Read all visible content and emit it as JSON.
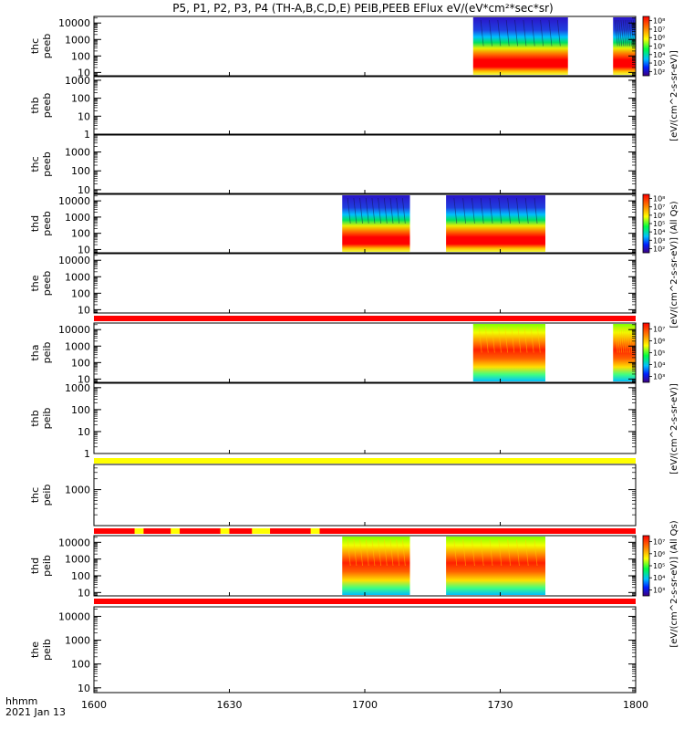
{
  "title": "P5, P1, P2, P3, P4 (TH-A,B,C,D,E) PEIB,PEEB EFlux eV/(eV*cm²*sec*sr)",
  "x_axis": {
    "row_label": "hhmm",
    "date_label": "2021 Jan 13",
    "ticks": [
      "1600",
      "1630",
      "1700",
      "1730",
      "1800"
    ]
  },
  "colorbar_labels": {
    "electron": "[eV/(cm^2-s-sr-eV)]",
    "electron_mid": "[eV/(cm^2-s-sr-eV)] (All Qs)",
    "ion": "[eV/(cm^2-s-sr-eV)]",
    "ion_bottom": "[eV/(cm^2-s-sr-eV)] (All Qs)"
  },
  "colors": {
    "red_bar": "#ff0000",
    "yellow_bar": "#ffff00",
    "spectrogram_low": "#2020c8",
    "spectrogram_high": "#ff0000"
  },
  "chart_data": {
    "type": "heatmap",
    "x_range": [
      "16:00",
      "18:00"
    ],
    "panels": [
      {
        "label1": "thc",
        "label2": "peeb",
        "yticks": [
          "10",
          "100",
          "1000",
          "10000"
        ],
        "ylog": [
          0.8,
          4.4
        ],
        "data_intervals": [
          [
            "17:24",
            "17:45"
          ],
          [
            "17:55",
            "18:00"
          ]
        ],
        "colorbar": {
          "ticks": [
            "10⁸",
            "10⁷",
            "10⁶",
            "10⁵",
            "10⁴",
            "10³",
            "10²"
          ],
          "label_key": "electron"
        }
      },
      {
        "label1": "thb",
        "label2": "peeb",
        "yticks": [
          "1",
          "10",
          "100",
          "1000"
        ],
        "ylog": [
          0,
          3.2
        ],
        "data_intervals": []
      },
      {
        "label1": "thc",
        "label2": "peeb",
        "yticks": [
          "10",
          "100",
          "1000"
        ],
        "ylog": [
          0.8,
          3.9
        ],
        "data_intervals": []
      },
      {
        "label1": "thd",
        "label2": "peeb",
        "yticks": [
          "10",
          "100",
          "1000",
          "10000"
        ],
        "ylog": [
          0.8,
          4.4
        ],
        "data_intervals": [
          [
            "16:55",
            "17:10"
          ],
          [
            "17:18",
            "17:40"
          ]
        ],
        "colorbar": {
          "ticks": [
            "10⁸",
            "10⁷",
            "10⁶",
            "10⁵",
            "10⁴",
            "10³",
            "10²"
          ],
          "label_key": "electron_mid"
        }
      },
      {
        "label1": "the",
        "label2": "peeb",
        "yticks": [
          "10",
          "100",
          "1000",
          "10000"
        ],
        "ylog": [
          0.8,
          4.4
        ],
        "data_intervals": [],
        "below_bar": "red"
      },
      {
        "label1": "tha",
        "label2": "peib",
        "yticks": [
          "10",
          "100",
          "1000",
          "10000"
        ],
        "ylog": [
          0.8,
          4.4
        ],
        "data_intervals": [
          [
            "17:24",
            "17:40"
          ],
          [
            "17:55",
            "18:00"
          ]
        ],
        "colorbar": {
          "ticks": [
            "10⁷",
            "10⁶",
            "10⁵",
            "10⁴",
            "10³"
          ],
          "label_key": "ion"
        }
      },
      {
        "label1": "thb",
        "label2": "peib",
        "yticks": [
          "1",
          "10",
          "100",
          "1000"
        ],
        "ylog": [
          0,
          3.2
        ],
        "data_intervals": [],
        "below_bar": "yellow"
      },
      {
        "label1": "thc",
        "label2": "peib",
        "yticks": [
          "1000"
        ],
        "ylog": [
          2.0,
          3.7
        ],
        "data_intervals": [],
        "below_bar": "mixed"
      },
      {
        "label1": "thd",
        "label2": "peib",
        "yticks": [
          "10",
          "100",
          "1000",
          "10000"
        ],
        "ylog": [
          0.8,
          4.4
        ],
        "data_intervals": [
          [
            "16:55",
            "17:10"
          ],
          [
            "17:18",
            "17:40"
          ]
        ],
        "colorbar": {
          "ticks": [
            "10⁷",
            "10⁶",
            "10⁵",
            "10⁴",
            "10³"
          ],
          "label_key": "ion_bottom"
        },
        "below_bar": "red"
      },
      {
        "label1": "the",
        "label2": "peib",
        "yticks": [
          "10",
          "100",
          "1000",
          "10000"
        ],
        "ylog": [
          0.8,
          4.4
        ],
        "data_intervals": []
      }
    ],
    "mixed_bar_yellow_segments": [
      [
        "16:09",
        "16:11"
      ],
      [
        "16:17",
        "16:19"
      ],
      [
        "16:28",
        "16:30"
      ],
      [
        "16:35",
        "16:39"
      ],
      [
        "16:48",
        "16:50"
      ]
    ]
  }
}
